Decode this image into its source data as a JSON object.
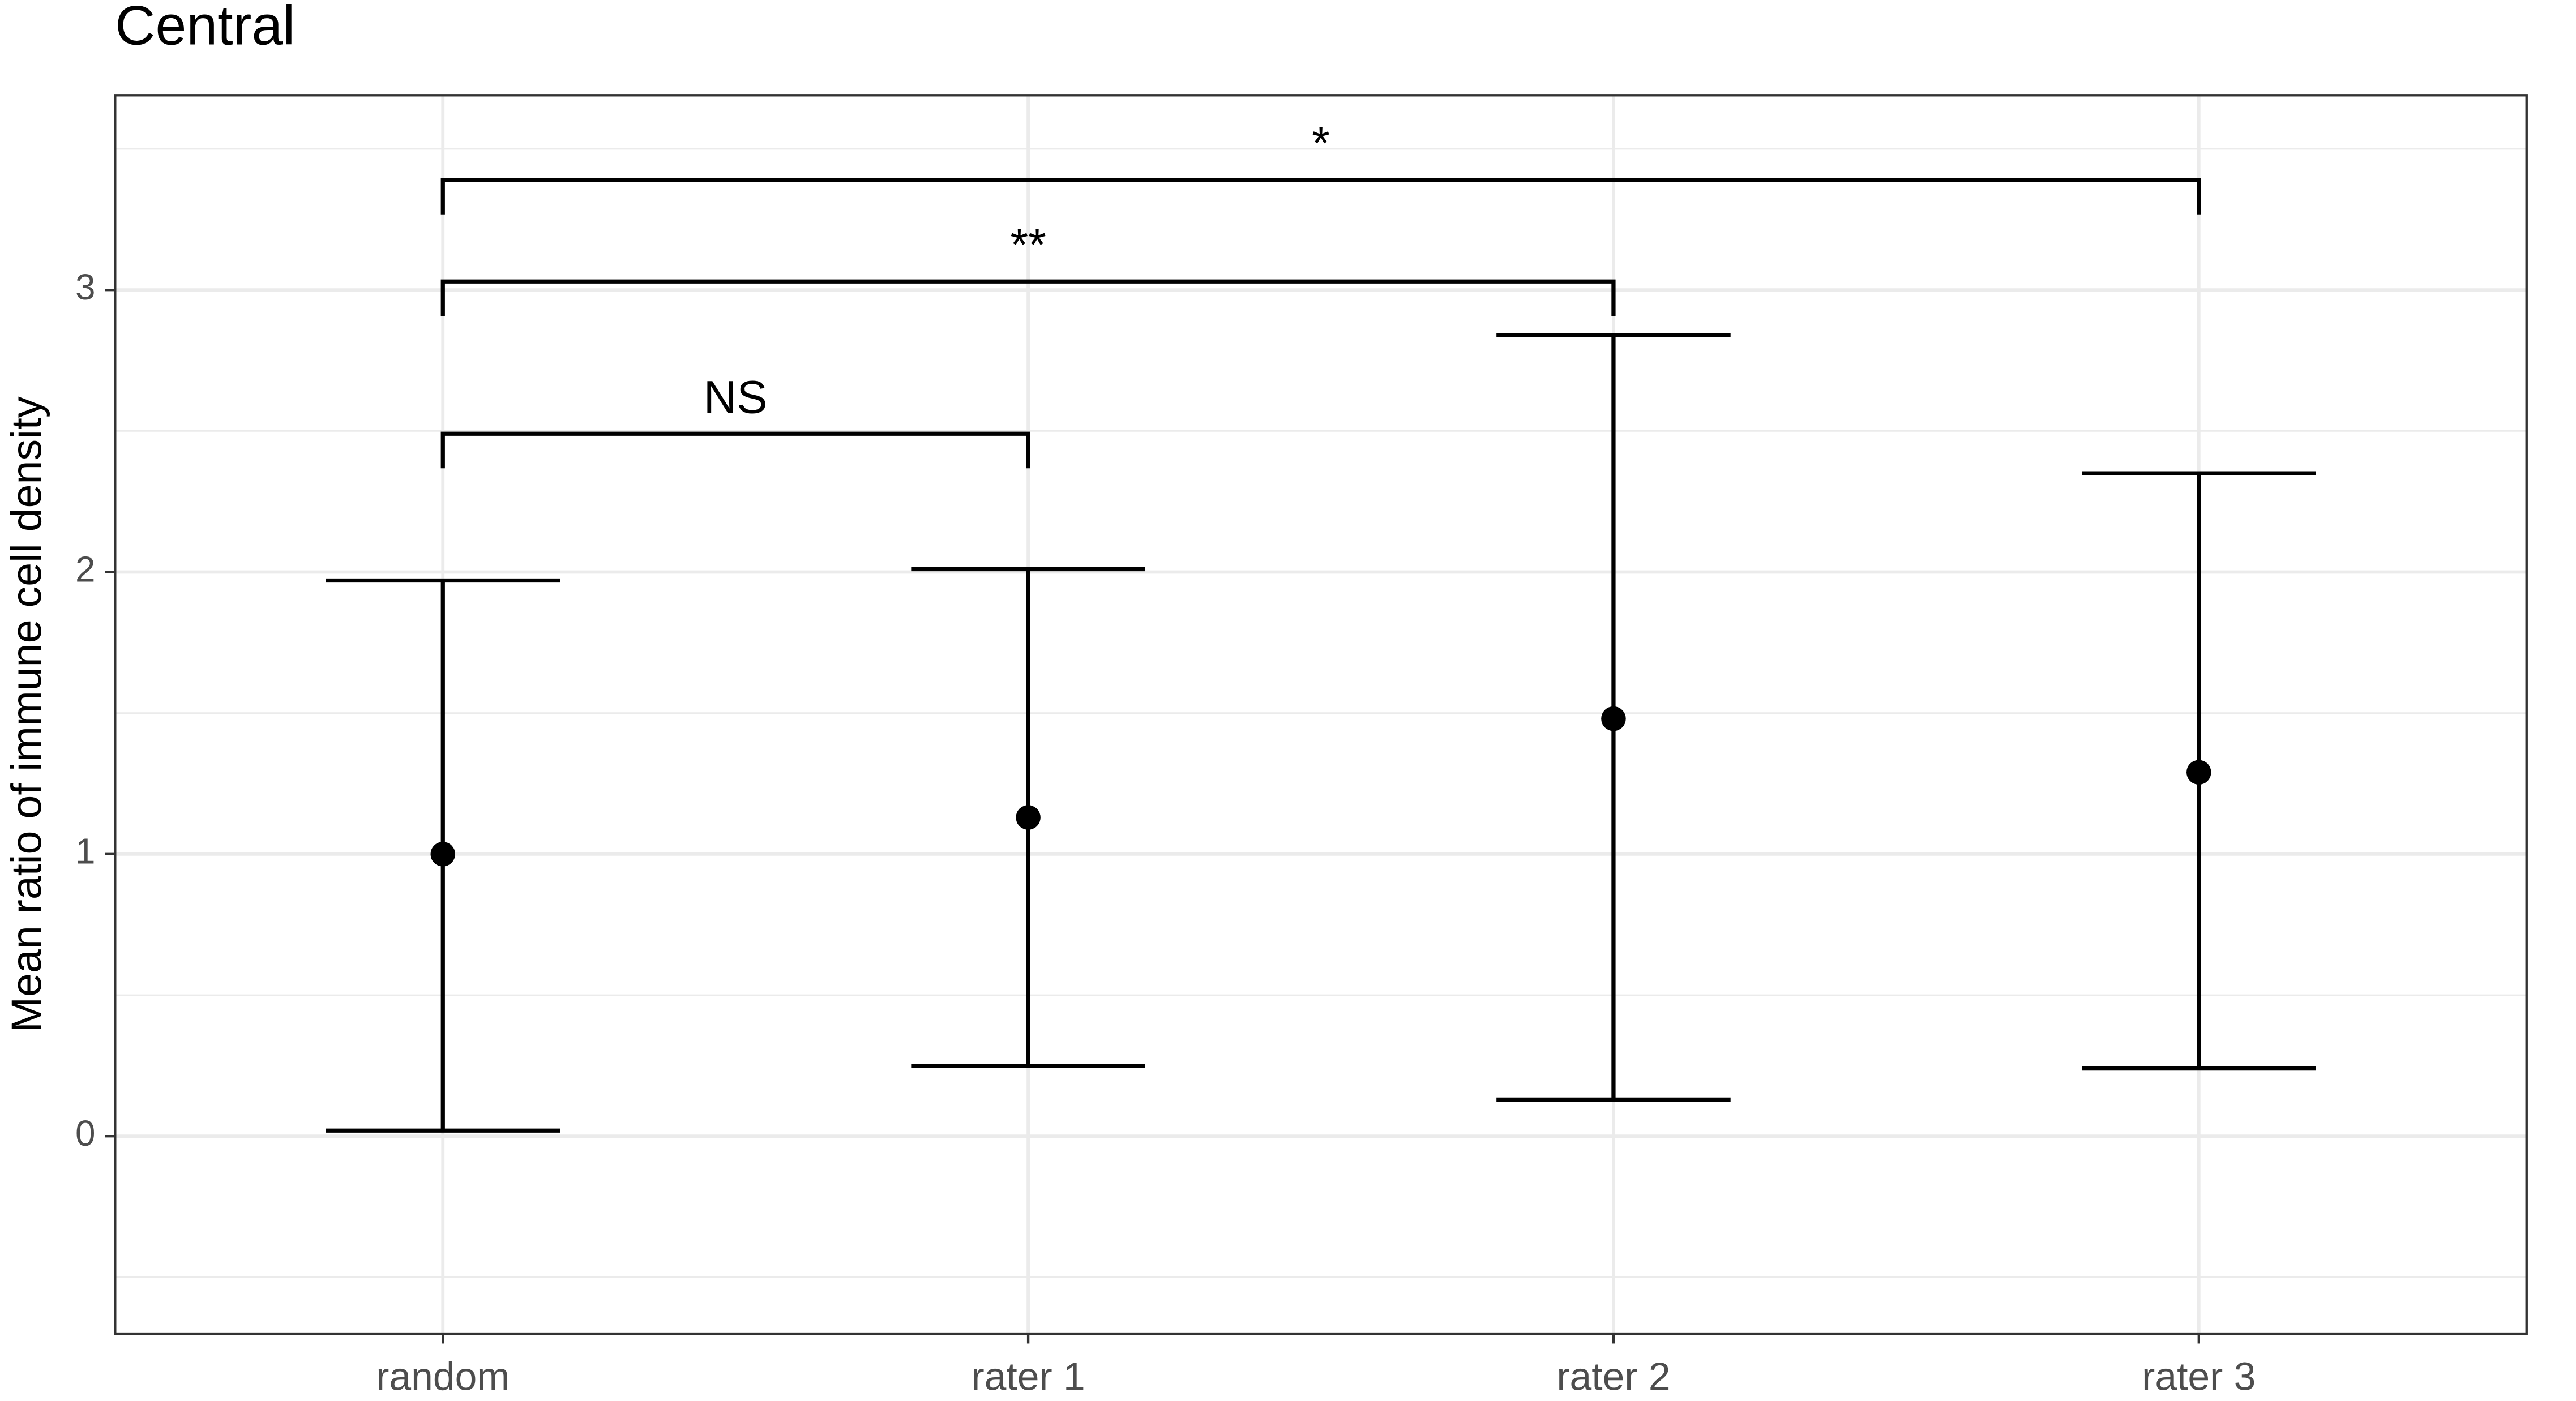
{
  "chart_data": {
    "type": "errorpoint",
    "title": "Central",
    "y_label": "Mean ratio of immune cell density",
    "categories": [
      "random",
      "rater 1",
      "rater 2",
      "rater 3"
    ],
    "values": [
      1.0,
      1.13,
      1.48,
      1.29
    ],
    "lower": [
      0.02,
      0.25,
      0.13,
      0.24
    ],
    "upper": [
      1.97,
      2.01,
      2.84,
      2.35
    ],
    "color": "#000000",
    "ylim": [
      -0.7,
      3.69
    ],
    "yticks": [
      0,
      1,
      2,
      3
    ],
    "minor_yticks": [
      -0.5,
      0.5,
      1.5,
      2.5,
      3.5
    ],
    "grid": true,
    "comparisons": [
      {
        "from": 0,
        "to": 1,
        "label": "NS",
        "y": 2.49
      },
      {
        "from": 0,
        "to": 2,
        "label": "**",
        "y": 3.03
      },
      {
        "from": 0,
        "to": 3,
        "label": "*",
        "y": 3.39
      }
    ]
  }
}
